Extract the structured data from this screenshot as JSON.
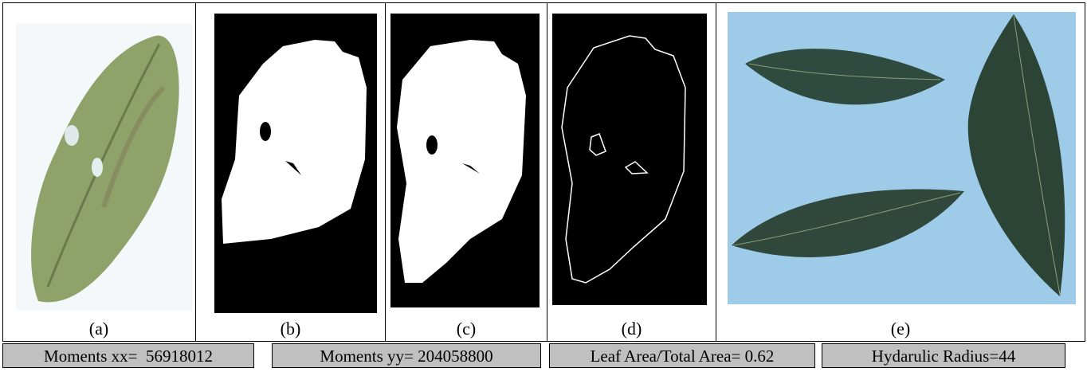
{
  "panels": [
    {
      "caption": "(a)"
    },
    {
      "caption": "(b)"
    },
    {
      "caption": "(c)"
    },
    {
      "caption": "(d)"
    },
    {
      "caption": "(e)"
    }
  ],
  "measurements": [
    "Moments xx=  56918012",
    "Moments yy= 204058800",
    "Leaf Area/Total Area= 0.62",
    "Hydarulic Radius=44"
  ]
}
